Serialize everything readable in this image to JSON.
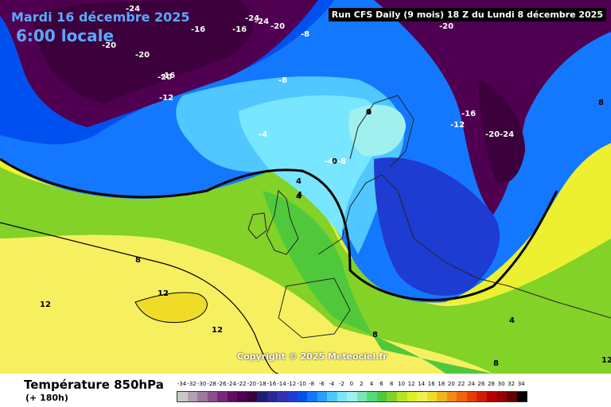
{
  "header": {
    "date": "Mardi 16 décembre 2025",
    "time": "6:00 locale",
    "run_info": "Run CFS Daily (9 mois) 18 Z du Lundi 8 décembre 2025"
  },
  "copyright": "Copyright © 2025 Meteociel.fr",
  "footer": {
    "title": "Température 850hPa",
    "subtitle": "(+ 180h)"
  },
  "map_labels": [
    "-24",
    "-20",
    "-16",
    "-16",
    "-24",
    "-24",
    "-20",
    "-20",
    "-20",
    "-16",
    "-12",
    "-8",
    "-8",
    "-4",
    "4",
    "4",
    "0",
    "0",
    "-4",
    "-8",
    "-12",
    "-16",
    "-20",
    "-24",
    "-20",
    "8",
    "8",
    "8",
    "12",
    "12",
    "12",
    "4",
    "4",
    "4",
    "8",
    "12"
  ],
  "legend": {
    "values": [
      "-34",
      "-32",
      "-30",
      "-28",
      "-26",
      "-24",
      "-22",
      "-20",
      "-18",
      "-16",
      "-14",
      "-12",
      "-10",
      "-8",
      "-6",
      "-4",
      "-2",
      "0",
      "2",
      "4",
      "6",
      "8",
      "10",
      "12",
      "14",
      "16",
      "18",
      "20",
      "22",
      "24",
      "26",
      "28",
      "30",
      "32",
      "34"
    ],
    "colors": [
      "#c8c8c8",
      "#b4a0b4",
      "#a078a0",
      "#8c508c",
      "#782878",
      "#640a64",
      "#500050",
      "#3c003c",
      "#1e1e78",
      "#282896",
      "#3232b4",
      "#1e3cd2",
      "#0050f0",
      "#1478ff",
      "#28a0ff",
      "#50c8ff",
      "#78e6ff",
      "#a0f0f0",
      "#78e6b4",
      "#50dc78",
      "#50c83c",
      "#82d228",
      "#b4e628",
      "#dcf028",
      "#f0f050",
      "#f0dc28",
      "#f0b41e",
      "#f08c14",
      "#f0640a",
      "#e63c00",
      "#d21e00",
      "#b40000",
      "#960000",
      "#640000",
      "#000000"
    ]
  }
}
